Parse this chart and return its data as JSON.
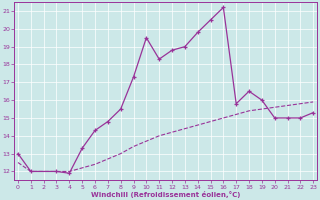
{
  "xlabel": "Windchill (Refroidissement éolien,°C)",
  "bg_color": "#cce8e8",
  "line_color": "#993399",
  "x_upper_line": [
    0,
    1,
    3,
    4,
    5,
    6,
    7,
    8,
    9,
    10,
    11,
    12,
    13,
    14,
    15,
    16,
    17,
    18,
    19,
    20,
    21,
    22,
    23
  ],
  "y_upper_line": [
    13,
    12,
    12,
    11.9,
    13.3,
    14.3,
    14.8,
    15.5,
    17.3,
    19.5,
    18.3,
    18.8,
    19.0,
    19.8,
    20.5,
    21.2,
    15.8,
    16.5,
    16.0,
    15.0,
    15.0,
    15.0,
    15.3
  ],
  "x_lower_line": [
    0,
    1,
    3,
    4,
    5,
    6,
    7,
    8,
    9,
    10,
    11,
    12,
    13,
    14,
    15,
    16,
    17,
    18,
    19,
    20,
    21,
    22,
    23
  ],
  "y_lower_line": [
    12.5,
    12.0,
    12.0,
    12.0,
    12.2,
    12.4,
    12.7,
    13.0,
    13.4,
    13.7,
    14.0,
    14.2,
    14.4,
    14.6,
    14.8,
    15.0,
    15.2,
    15.4,
    15.5,
    15.6,
    15.7,
    15.8,
    15.9
  ],
  "ylim": [
    11.5,
    21.5
  ],
  "yticks": [
    12,
    13,
    14,
    15,
    16,
    17,
    18,
    19,
    20,
    21
  ],
  "xticks": [
    0,
    1,
    2,
    3,
    4,
    5,
    6,
    7,
    8,
    9,
    10,
    11,
    12,
    13,
    14,
    15,
    16,
    17,
    18,
    19,
    20,
    21,
    22,
    23
  ],
  "xlim": [
    -0.3,
    23.3
  ],
  "marker_size": 3.5,
  "lw_upper": 0.9,
  "lw_lower": 0.8,
  "tick_labelsize": 4.5,
  "xlabel_fontsize": 5.0
}
